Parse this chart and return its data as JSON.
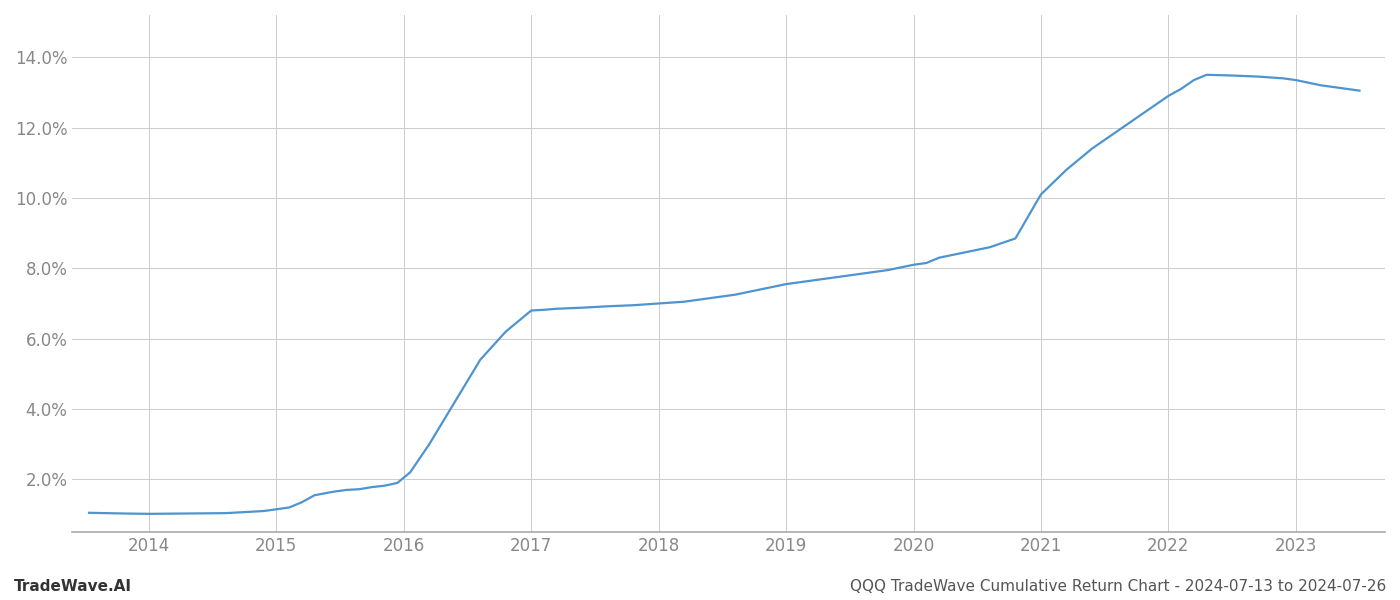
{
  "x": [
    2013.53,
    2013.8,
    2014.0,
    2014.3,
    2014.6,
    2014.9,
    2015.0,
    2015.1,
    2015.2,
    2015.3,
    2015.45,
    2015.55,
    2015.65,
    2015.75,
    2015.85,
    2015.95,
    2016.05,
    2016.2,
    2016.4,
    2016.6,
    2016.8,
    2017.0,
    2017.1,
    2017.2,
    2017.4,
    2017.6,
    2017.8,
    2018.0,
    2018.2,
    2018.4,
    2018.6,
    2018.8,
    2019.0,
    2019.2,
    2019.4,
    2019.6,
    2019.8,
    2020.0,
    2020.1,
    2020.2,
    2020.4,
    2020.6,
    2020.8,
    2021.0,
    2021.2,
    2021.4,
    2021.6,
    2021.8,
    2022.0,
    2022.1,
    2022.2,
    2022.3,
    2022.5,
    2022.7,
    2022.9,
    2023.0,
    2023.2,
    2023.5
  ],
  "y": [
    1.05,
    1.03,
    1.02,
    1.03,
    1.04,
    1.1,
    1.15,
    1.2,
    1.35,
    1.55,
    1.65,
    1.7,
    1.72,
    1.78,
    1.82,
    1.9,
    2.2,
    3.0,
    4.2,
    5.4,
    6.2,
    6.8,
    6.82,
    6.85,
    6.88,
    6.92,
    6.95,
    7.0,
    7.05,
    7.15,
    7.25,
    7.4,
    7.55,
    7.65,
    7.75,
    7.85,
    7.95,
    8.1,
    8.15,
    8.3,
    8.45,
    8.6,
    8.85,
    10.1,
    10.8,
    11.4,
    11.9,
    12.4,
    12.9,
    13.1,
    13.35,
    13.5,
    13.48,
    13.45,
    13.4,
    13.35,
    13.2,
    13.05
  ],
  "line_color": "#4d94d0",
  "line_width": 1.6,
  "background_color": "#ffffff",
  "grid_color": "#cccccc",
  "xlim": [
    2013.4,
    2023.7
  ],
  "ylim": [
    0.5,
    15.2
  ],
  "yticks": [
    2.0,
    4.0,
    6.0,
    8.0,
    10.0,
    12.0,
    14.0
  ],
  "xticks": [
    2014,
    2015,
    2016,
    2017,
    2018,
    2019,
    2020,
    2021,
    2022,
    2023
  ],
  "tick_fontsize": 12,
  "footer_left": "TradeWave.AI",
  "footer_right": "QQQ TradeWave Cumulative Return Chart - 2024-07-13 to 2024-07-26",
  "footer_fontsize": 11,
  "tick_color": "#888888",
  "spine_color": "#aaaaaa"
}
